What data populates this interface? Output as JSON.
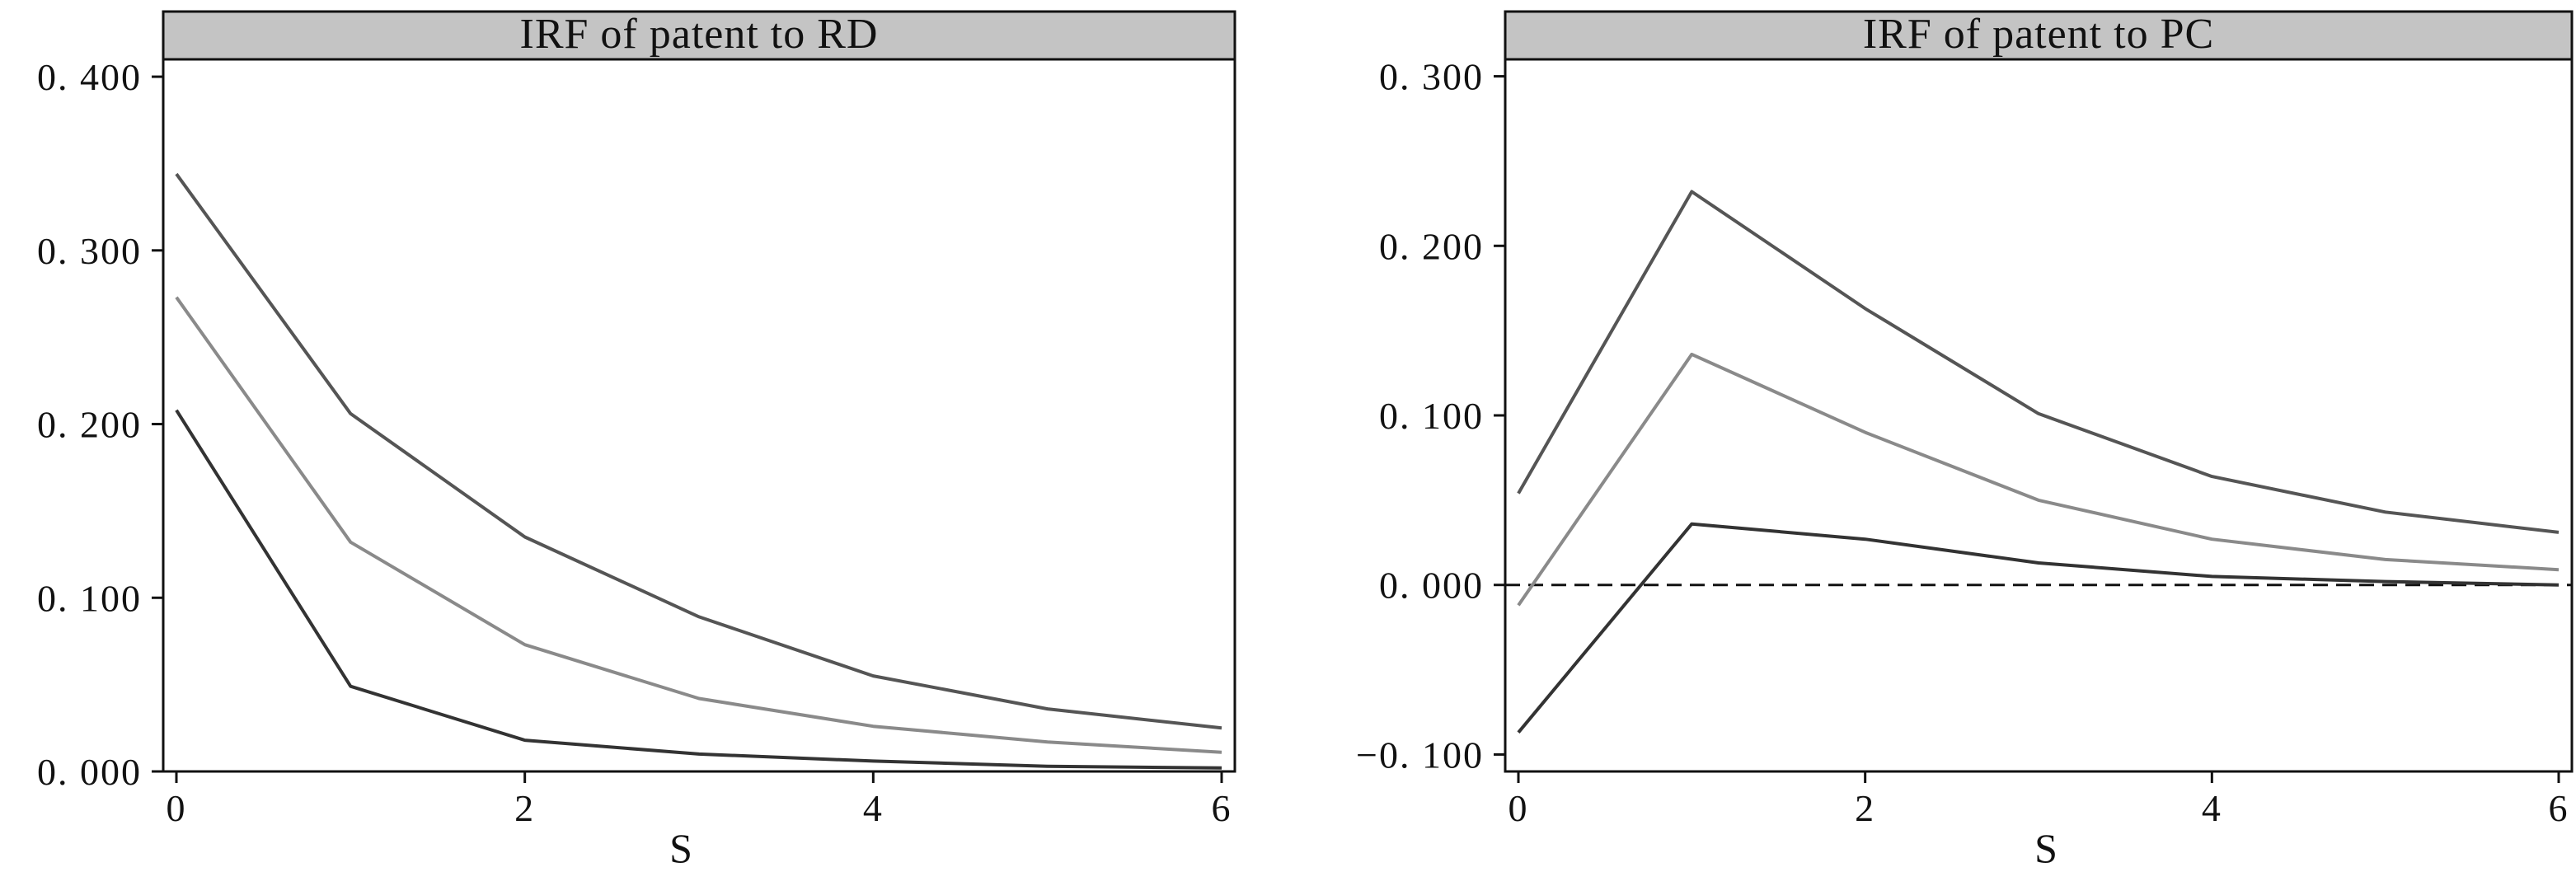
{
  "chart_data": [
    {
      "type": "line",
      "title": "IRF of patent to RD",
      "xlabel": "S",
      "ylabel": "",
      "xlim": [
        0,
        6
      ],
      "ylim": [
        0.0,
        0.41
      ],
      "x_ticks": [
        0,
        2,
        4,
        6
      ],
      "x_tick_labels": [
        "0",
        "2",
        "4",
        "6"
      ],
      "y_ticks": [
        0.0,
        0.1,
        0.2,
        0.3,
        0.4
      ],
      "y_tick_labels": [
        "0. 000",
        "0. 100",
        "0. 200",
        "0. 300",
        "0. 400"
      ],
      "reference_line": {
        "y": 0.0,
        "style": "dashed"
      },
      "grid": false,
      "x": [
        0,
        1,
        2,
        3,
        4,
        5,
        6
      ],
      "series": [
        {
          "values": [
            0.344,
            0.206,
            0.135,
            0.089,
            0.055,
            0.036,
            0.025
          ],
          "color": "#555555"
        },
        {
          "values": [
            0.273,
            0.132,
            0.073,
            0.042,
            0.026,
            0.017,
            0.011
          ],
          "color": "#8a8a8a"
        },
        {
          "values": [
            0.208,
            0.049,
            0.018,
            0.01,
            0.006,
            0.003,
            0.002
          ],
          "color": "#333333"
        }
      ]
    },
    {
      "type": "line",
      "title": "IRF of patent to  PC",
      "xlabel": "S",
      "ylabel": "",
      "xlim": [
        0,
        6
      ],
      "ylim": [
        -0.11,
        0.31
      ],
      "x_ticks": [
        0,
        2,
        4,
        6
      ],
      "x_tick_labels": [
        "0",
        "2",
        "4",
        "6"
      ],
      "y_ticks": [
        -0.1,
        0.0,
        0.1,
        0.2,
        0.3
      ],
      "y_tick_labels": [
        "−0. 100",
        "0. 000",
        "0. 100",
        "0. 200",
        "0. 300"
      ],
      "reference_line": {
        "y": 0.0,
        "style": "dashed"
      },
      "grid": false,
      "x": [
        0,
        1,
        2,
        3,
        4,
        5,
        6
      ],
      "series": [
        {
          "values": [
            0.054,
            0.232,
            0.163,
            0.101,
            0.064,
            0.043,
            0.031
          ],
          "color": "#555555"
        },
        {
          "values": [
            -0.012,
            0.136,
            0.09,
            0.05,
            0.027,
            0.015,
            0.009
          ],
          "color": "#8a8a8a"
        },
        {
          "values": [
            -0.087,
            0.036,
            0.027,
            0.013,
            0.005,
            0.002,
            0.0
          ],
          "color": "#333333"
        }
      ]
    }
  ]
}
